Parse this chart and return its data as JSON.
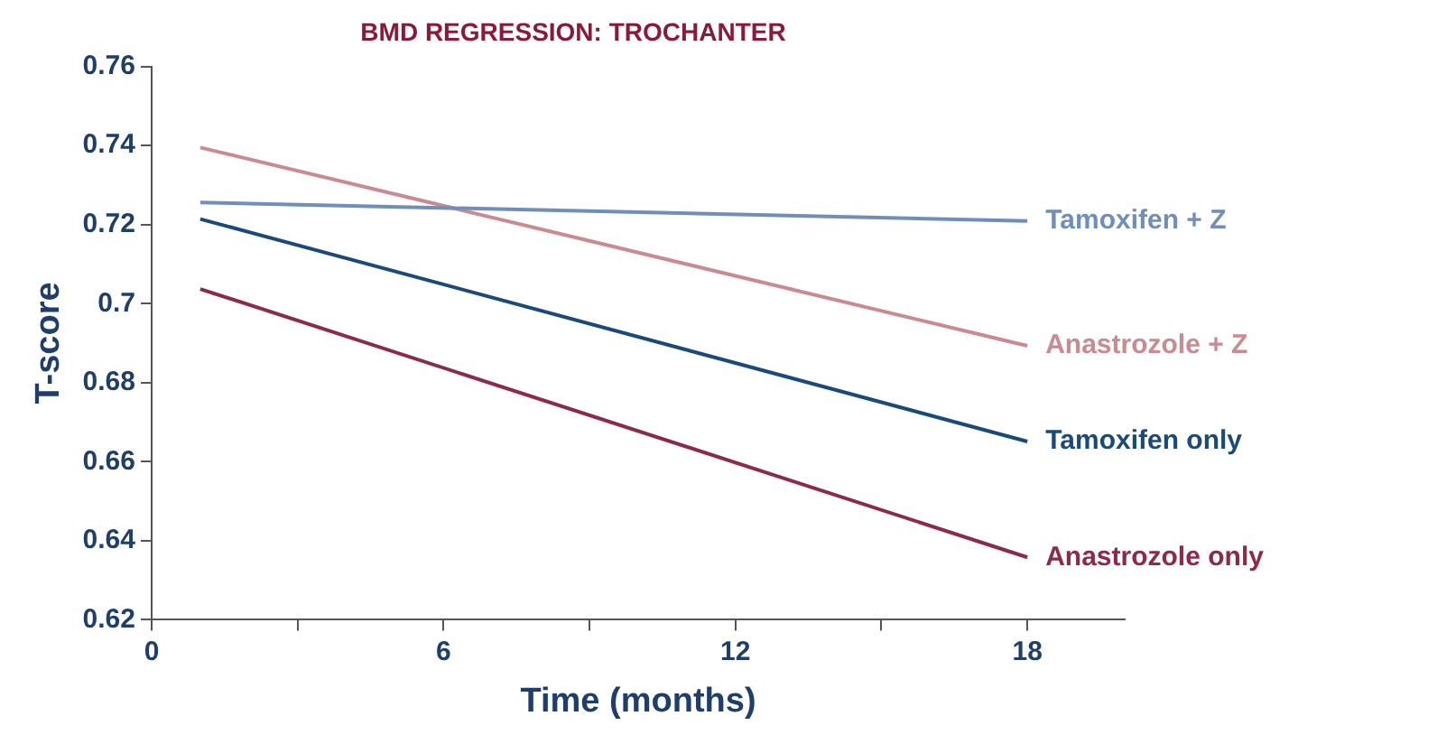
{
  "chart_data": {
    "type": "line",
    "title": "BMD REGRESSION: TROCHANTER",
    "xlabel": "Time (months)",
    "ylabel": "T-score",
    "xlim": [
      0,
      20
    ],
    "xticks": [
      0,
      {
        "value": 3,
        "label": null
      },
      6,
      {
        "value": 9,
        "label": null
      },
      12,
      {
        "value": 15,
        "label": null
      },
      18
    ],
    "x": [
      1,
      18
    ],
    "ylim": [
      0.62,
      0.76
    ],
    "yticks": [
      0.62,
      0.64,
      0.66,
      0.68,
      0.7,
      0.72,
      0.74,
      0.76
    ],
    "grid": false,
    "legend": false,
    "marker": "none",
    "line_style": "solid",
    "series": [
      {
        "name": "Tamoxifen + Z",
        "color": "#6f8fba",
        "values": [
          0.7256,
          0.7209
        ]
      },
      {
        "name": "Anastrozole + Z",
        "color": "#c98a92",
        "values": [
          0.7395,
          0.6893
        ]
      },
      {
        "name": "Tamoxifen only",
        "color": "#1a4a7a",
        "values": [
          0.7214,
          0.6651
        ]
      },
      {
        "name": "Anastrozole only",
        "color": "#8b2a4a",
        "values": [
          0.7037,
          0.6358
        ]
      }
    ]
  }
}
